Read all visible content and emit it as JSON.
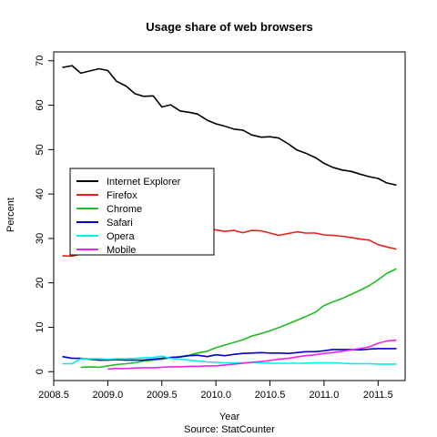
{
  "chart_data": {
    "type": "line",
    "title": "Usage share of web browsers",
    "xlabel": "Year",
    "ylabel": "Percent",
    "source_note": "Source: StatCounter",
    "xlim": [
      2008.5,
      2011.75
    ],
    "ylim": [
      -2,
      72
    ],
    "x_ticks": [
      2008.5,
      2009.0,
      2009.5,
      2010.0,
      2010.5,
      2011.0,
      2011.5
    ],
    "x_tick_labels": [
      "2008.5",
      "2009.0",
      "2009.5",
      "2010.0",
      "2010.5",
      "2011.0",
      "2011.5"
    ],
    "y_ticks": [
      0,
      10,
      20,
      30,
      40,
      50,
      60,
      70
    ],
    "y_tick_labels": [
      "0",
      "10",
      "20",
      "30",
      "40",
      "50",
      "60",
      "70"
    ],
    "grid": false,
    "legend_position": "center-left",
    "series": [
      {
        "name": "Internet Explorer",
        "color": "#000000",
        "x": [
          2008.58,
          2008.67,
          2008.75,
          2008.83,
          2008.92,
          2009.0,
          2009.08,
          2009.17,
          2009.25,
          2009.33,
          2009.42,
          2009.5,
          2009.58,
          2009.67,
          2009.75,
          2009.83,
          2009.92,
          2010.0,
          2010.08,
          2010.17,
          2010.25,
          2010.33,
          2010.42,
          2010.5,
          2010.58,
          2010.67,
          2010.75,
          2010.83,
          2010.92,
          2011.0,
          2011.08,
          2011.17,
          2011.25,
          2011.33,
          2011.42,
          2011.5,
          2011.58,
          2011.67
        ],
        "y": [
          68.5,
          68.9,
          67.2,
          67.7,
          68.2,
          67.8,
          65.4,
          64.3,
          62.6,
          62.0,
          62.1,
          59.6,
          60.1,
          58.7,
          58.4,
          58.0,
          56.6,
          55.8,
          55.3,
          54.6,
          54.4,
          53.3,
          52.8,
          52.9,
          52.6,
          51.3,
          49.9,
          49.2,
          48.2,
          46.9,
          46.0,
          45.4,
          45.1,
          44.5,
          43.9,
          43.5,
          42.5,
          42.0
        ]
      },
      {
        "name": "Firefox",
        "color": "#e8201a",
        "x": [
          2008.58,
          2008.67,
          2008.75,
          2008.83,
          2008.92,
          2009.0,
          2009.08,
          2009.17,
          2009.25,
          2009.33,
          2009.42,
          2009.5,
          2009.58,
          2009.67,
          2009.75,
          2009.83,
          2009.92,
          2010.0,
          2010.08,
          2010.17,
          2010.25,
          2010.33,
          2010.42,
          2010.5,
          2010.58,
          2010.67,
          2010.75,
          2010.83,
          2010.92,
          2011.0,
          2011.08,
          2011.17,
          2011.25,
          2011.33,
          2011.42,
          2011.5,
          2011.58,
          2011.67
        ],
        "y": [
          26.1,
          26.0,
          26.5,
          26.8,
          26.8,
          27.0,
          27.5,
          28.1,
          29.0,
          29.5,
          29.9,
          30.1,
          30.7,
          31.1,
          31.5,
          31.7,
          32.2,
          31.9,
          31.6,
          31.8,
          31.3,
          31.8,
          31.7,
          31.2,
          30.7,
          31.1,
          31.5,
          31.2,
          31.2,
          30.8,
          30.7,
          30.5,
          30.2,
          29.9,
          29.6,
          28.6,
          28.1,
          27.6
        ]
      },
      {
        "name": "Chrome",
        "color": "#22bb22",
        "x": [
          2008.75,
          2008.83,
          2008.92,
          2009.0,
          2009.08,
          2009.17,
          2009.25,
          2009.33,
          2009.42,
          2009.5,
          2009.58,
          2009.67,
          2009.75,
          2009.83,
          2009.92,
          2010.0,
          2010.08,
          2010.17,
          2010.25,
          2010.33,
          2010.42,
          2010.5,
          2010.58,
          2010.67,
          2010.75,
          2010.83,
          2010.92,
          2011.0,
          2011.08,
          2011.17,
          2011.25,
          2011.33,
          2011.42,
          2011.5,
          2011.58,
          2011.67
        ],
        "y": [
          1.0,
          1.1,
          1.0,
          1.3,
          1.6,
          1.8,
          2.0,
          2.4,
          2.6,
          2.8,
          3.1,
          3.4,
          3.7,
          4.2,
          4.6,
          5.4,
          6.0,
          6.6,
          7.2,
          8.0,
          8.6,
          9.2,
          9.9,
          10.8,
          11.6,
          12.4,
          13.4,
          14.9,
          15.7,
          16.5,
          17.4,
          18.3,
          19.4,
          20.7,
          22.1,
          23.2
        ]
      },
      {
        "name": "Safari",
        "color": "#0000cc",
        "x": [
          2008.58,
          2008.67,
          2008.75,
          2008.83,
          2008.92,
          2009.0,
          2009.08,
          2009.17,
          2009.25,
          2009.33,
          2009.42,
          2009.5,
          2009.58,
          2009.67,
          2009.75,
          2009.83,
          2009.92,
          2010.0,
          2010.08,
          2010.17,
          2010.25,
          2010.33,
          2010.42,
          2010.5,
          2010.58,
          2010.67,
          2010.75,
          2010.83,
          2010.92,
          2011.0,
          2011.08,
          2011.17,
          2011.25,
          2011.33,
          2011.42,
          2011.5,
          2011.58,
          2011.67
        ],
        "y": [
          3.4,
          3.0,
          3.0,
          2.8,
          2.6,
          2.6,
          2.7,
          2.6,
          2.6,
          2.6,
          2.8,
          3.0,
          3.2,
          3.3,
          3.6,
          3.7,
          3.4,
          3.8,
          3.6,
          3.9,
          4.1,
          4.2,
          4.3,
          4.2,
          4.2,
          4.1,
          4.3,
          4.5,
          4.5,
          4.7,
          5.0,
          5.0,
          5.0,
          4.9,
          5.1,
          5.2,
          5.2,
          5.2
        ]
      },
      {
        "name": "Opera",
        "color": "#00eeee",
        "x": [
          2008.58,
          2008.67,
          2008.75,
          2008.83,
          2008.92,
          2009.0,
          2009.08,
          2009.17,
          2009.25,
          2009.33,
          2009.42,
          2009.5,
          2009.58,
          2009.67,
          2009.75,
          2009.83,
          2009.92,
          2010.0,
          2010.08,
          2010.17,
          2010.25,
          2010.33,
          2010.42,
          2010.5,
          2010.58,
          2010.67,
          2010.75,
          2010.83,
          2010.92,
          2011.0,
          2011.08,
          2011.17,
          2011.25,
          2011.33,
          2011.42,
          2011.5,
          2011.58,
          2011.67
        ],
        "y": [
          1.8,
          1.8,
          2.9,
          2.9,
          2.9,
          2.8,
          2.9,
          2.9,
          3.0,
          3.1,
          3.2,
          3.5,
          3.0,
          2.8,
          2.6,
          2.4,
          2.2,
          2.1,
          2.0,
          2.0,
          2.0,
          2.1,
          2.0,
          1.9,
          1.9,
          1.9,
          1.9,
          1.9,
          2.0,
          2.0,
          2.0,
          1.9,
          1.8,
          1.8,
          1.8,
          1.7,
          1.7,
          1.7
        ]
      },
      {
        "name": "Mobile",
        "color": "#ee22ee",
        "x": [
          2009.0,
          2009.08,
          2009.17,
          2009.25,
          2009.33,
          2009.42,
          2009.5,
          2009.58,
          2009.67,
          2009.75,
          2009.83,
          2009.92,
          2010.0,
          2010.08,
          2010.17,
          2010.25,
          2010.33,
          2010.42,
          2010.5,
          2010.58,
          2010.67,
          2010.75,
          2010.83,
          2010.92,
          2011.0,
          2011.08,
          2011.17,
          2011.25,
          2011.33,
          2011.42,
          2011.5,
          2011.58,
          2011.67
        ],
        "y": [
          0.6,
          0.7,
          0.7,
          0.8,
          0.9,
          0.9,
          1.0,
          1.1,
          1.1,
          1.2,
          1.2,
          1.3,
          1.3,
          1.5,
          1.7,
          1.9,
          2.1,
          2.3,
          2.5,
          2.8,
          3.0,
          3.3,
          3.6,
          3.8,
          4.1,
          4.3,
          4.6,
          4.9,
          5.2,
          5.6,
          6.4,
          6.9,
          7.1
        ]
      }
    ]
  }
}
